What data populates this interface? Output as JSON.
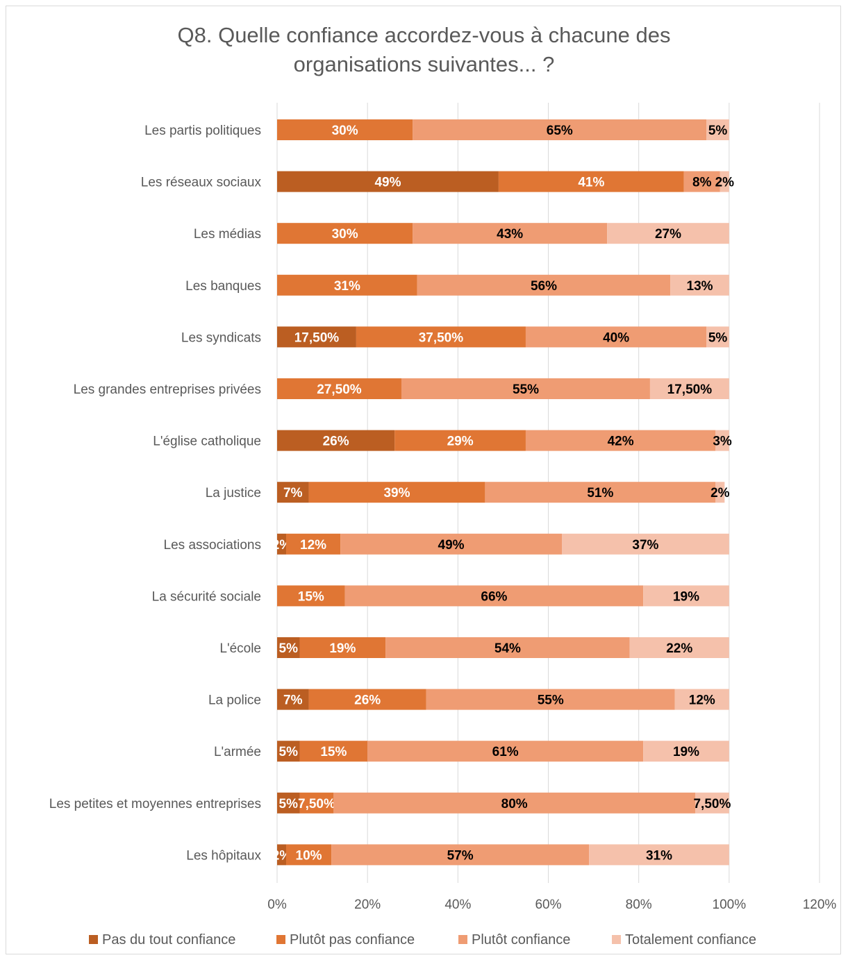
{
  "chart_data": {
    "type": "bar",
    "orientation": "horizontal",
    "stacked": true,
    "title_lines": [
      "Q8. Quelle confiance accordez-vous à chacune des",
      "organisations suivantes... ?"
    ],
    "categories": [
      "Les partis politiques",
      "Les réseaux sociaux",
      "Les médias",
      "Les banques",
      "Les syndicats",
      "Les grandes entreprises privées",
      "L'église catholique",
      "La justice",
      "Les associations",
      "La sécurité sociale",
      "L'école",
      "La police",
      "L'armée",
      "Les petites et moyennes entreprises",
      "Les hôpitaux"
    ],
    "series": [
      {
        "name": "Pas du tout confiance",
        "color": "#bb5e22",
        "values": [
          0,
          49,
          0,
          0,
          17.5,
          0,
          26,
          7,
          2,
          0,
          5,
          7,
          5,
          5,
          2
        ],
        "labels": [
          "",
          "49%",
          "",
          "",
          "17,50%",
          "",
          "26%",
          "7%",
          "2%",
          "",
          "5%",
          "7%",
          "5%",
          "5%",
          "2%"
        ]
      },
      {
        "name": "Plutôt pas confiance",
        "color": "#e07634",
        "values": [
          30,
          41,
          30,
          31,
          37.5,
          27.5,
          29,
          39,
          12,
          15,
          19,
          26,
          15,
          7.5,
          10
        ],
        "labels": [
          "30%",
          "41%",
          "30%",
          "31%",
          "37,50%",
          "27,50%",
          "29%",
          "39%",
          "12%",
          "15%",
          "19%",
          "26%",
          "15%",
          "7,50%",
          "10%"
        ]
      },
      {
        "name": "Plutôt confiance",
        "color": "#ef9c73",
        "values": [
          65,
          8,
          43,
          56,
          40,
          55,
          42,
          51,
          49,
          66,
          54,
          55,
          61,
          80,
          57
        ],
        "labels": [
          "65%",
          "8%",
          "43%",
          "56%",
          "40%",
          "55%",
          "42%",
          "51%",
          "49%",
          "66%",
          "54%",
          "55%",
          "61%",
          "80%",
          "57%"
        ]
      },
      {
        "name": "Totalement confiance",
        "color": "#f5c1ab",
        "values": [
          5,
          2,
          27,
          13,
          5,
          17.5,
          3,
          2,
          37,
          19,
          22,
          12,
          19,
          7.5,
          31
        ],
        "labels": [
          "5%",
          "2%",
          "27%",
          "13%",
          "5%",
          "17,50%",
          "3%",
          "2%",
          "37%",
          "19%",
          "22%",
          "12%",
          "19%",
          "7,50%",
          "31%"
        ]
      }
    ],
    "xaxis": {
      "ticks": [
        0,
        20,
        40,
        60,
        80,
        100,
        120
      ],
      "tick_labels": [
        "0%",
        "20%",
        "40%",
        "60%",
        "80%",
        "100%",
        "120%"
      ],
      "range": [
        0,
        120
      ]
    },
    "grid": true,
    "legend_position": "bottom"
  }
}
